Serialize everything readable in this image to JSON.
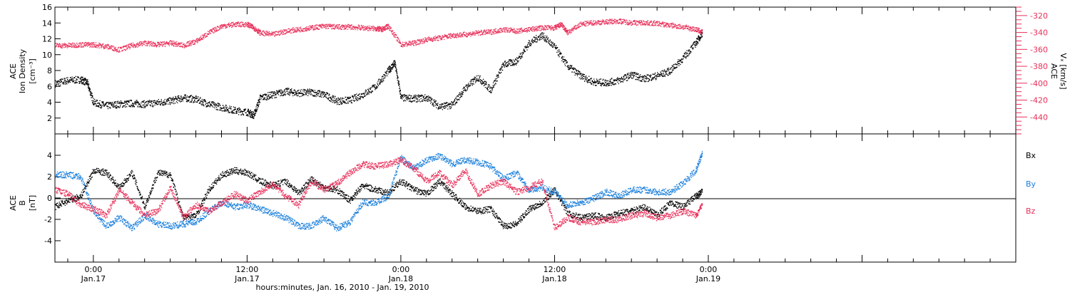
{
  "colors": {
    "black": "#000000",
    "red": "#e8305a",
    "blue": "#1a7fdc"
  },
  "chart_data": [
    {
      "type": "scatter",
      "title": "",
      "xlabel": "hours:minutes, Jan. 16, 2010 - Jan. 19, 2010",
      "x_range_hours": [
        -3,
        72
      ],
      "x_ticks": [
        {
          "hour": 0,
          "label": "0:00",
          "sublabel": "Jan.17"
        },
        {
          "hour": 12,
          "label": "12:00",
          "sublabel": "Jan.17"
        },
        {
          "hour": 24,
          "label": "0:00",
          "sublabel": "Jan.18"
        },
        {
          "hour": 36,
          "label": "12:00",
          "sublabel": "Jan.18"
        },
        {
          "hour": 48,
          "label": "0:00",
          "sublabel": "Jan.19"
        }
      ],
      "left_axis": {
        "label_line1": "ACE",
        "label_line2": "Ion Density",
        "label_line3": "[cm⁻³]",
        "ylim": [
          0,
          16
        ],
        "ticks": [
          2,
          4,
          6,
          8,
          10,
          12,
          14,
          16
        ]
      },
      "right_axis": {
        "label_line1": "ACE",
        "label_line2": "Vₓ [km/s]",
        "ylim": [
          -460,
          -310
        ],
        "ticks": [
          -440,
          -420,
          -400,
          -380,
          -360,
          -340,
          -320
        ]
      },
      "series": [
        {
          "name": "Ion Density",
          "axis": "left",
          "color": "#000000",
          "points": [
            [
              -3,
              6.4
            ],
            [
              -2,
              6.8
            ],
            [
              -1,
              6.9
            ],
            [
              -0.5,
              6.5
            ],
            [
              0,
              4.0
            ],
            [
              1,
              3.6
            ],
            [
              2,
              3.8
            ],
            [
              3,
              3.9
            ],
            [
              4,
              3.8
            ],
            [
              5,
              4.0
            ],
            [
              6,
              4.2
            ],
            [
              7,
              4.6
            ],
            [
              8,
              4.4
            ],
            [
              9,
              3.8
            ],
            [
              10,
              3.4
            ],
            [
              11,
              3.0
            ],
            [
              12,
              2.8
            ],
            [
              12.5,
              2.4
            ],
            [
              13,
              4.6
            ],
            [
              14,
              5.0
            ],
            [
              15,
              5.4
            ],
            [
              16,
              5.2
            ],
            [
              17,
              5.3
            ],
            [
              18,
              5.0
            ],
            [
              19,
              4.2
            ],
            [
              20,
              4.3
            ],
            [
              21,
              5.0
            ],
            [
              22,
              6.0
            ],
            [
              23,
              8.0
            ],
            [
              23.5,
              9.0
            ],
            [
              24,
              4.6
            ],
            [
              25,
              4.5
            ],
            [
              26,
              4.6
            ],
            [
              27,
              3.5
            ],
            [
              28,
              3.7
            ],
            [
              29,
              5.8
            ],
            [
              30,
              7.2
            ],
            [
              31,
              5.6
            ],
            [
              32,
              8.8
            ],
            [
              33,
              9.2
            ],
            [
              34,
              11.5
            ],
            [
              35,
              12.5
            ],
            [
              36,
              11.0
            ],
            [
              37,
              8.6
            ],
            [
              38,
              7.4
            ],
            [
              39,
              6.6
            ],
            [
              40,
              6.5
            ],
            [
              41,
              6.8
            ],
            [
              42,
              7.5
            ],
            [
              43,
              7.0
            ],
            [
              44,
              7.4
            ],
            [
              45,
              8.0
            ],
            [
              46,
              9.6
            ],
            [
              47,
              11.5
            ],
            [
              47.5,
              12.8
            ]
          ]
        },
        {
          "name": "Vx",
          "axis": "right",
          "color": "#e8305a",
          "points": [
            [
              -3,
              -355
            ],
            [
              -2,
              -355
            ],
            [
              -1,
              -354
            ],
            [
              0,
              -354
            ],
            [
              1,
              -356
            ],
            [
              2,
              -360
            ],
            [
              3,
              -355
            ],
            [
              4,
              -352
            ],
            [
              5,
              -354
            ],
            [
              6,
              -352
            ],
            [
              7,
              -355
            ],
            [
              8,
              -350
            ],
            [
              9,
              -340
            ],
            [
              10,
              -332
            ],
            [
              11,
              -330
            ],
            [
              12,
              -330
            ],
            [
              12.5,
              -334
            ],
            [
              13,
              -340
            ],
            [
              14,
              -342
            ],
            [
              15,
              -338
            ],
            [
              16,
              -336
            ],
            [
              17,
              -334
            ],
            [
              18,
              -332
            ],
            [
              19,
              -333
            ],
            [
              20,
              -333
            ],
            [
              21,
              -334
            ],
            [
              22,
              -335
            ],
            [
              22.5,
              -336
            ],
            [
              23,
              -332
            ],
            [
              24,
              -354
            ],
            [
              25,
              -352
            ],
            [
              26,
              -348
            ],
            [
              27,
              -346
            ],
            [
              28,
              -343
            ],
            [
              29,
              -342
            ],
            [
              30,
              -340
            ],
            [
              31,
              -339
            ],
            [
              32,
              -336
            ],
            [
              33,
              -338
            ],
            [
              34,
              -336
            ],
            [
              35,
              -334
            ],
            [
              36,
              -334
            ],
            [
              36.5,
              -330
            ],
            [
              37,
              -340
            ],
            [
              38,
              -330
            ],
            [
              39,
              -328
            ],
            [
              40,
              -327
            ],
            [
              41,
              -326
            ],
            [
              42,
              -328
            ],
            [
              43,
              -328
            ],
            [
              44,
              -329
            ],
            [
              45,
              -331
            ],
            [
              46,
              -333
            ],
            [
              47,
              -336
            ],
            [
              47.5,
              -339
            ]
          ]
        }
      ]
    },
    {
      "type": "scatter",
      "title": "",
      "left_axis": {
        "label_line1": "ACE",
        "label_line2": "B",
        "label_line3": "[nT]",
        "ylim": [
          -6,
          6
        ],
        "ticks": [
          -4,
          -2,
          0,
          2,
          4
        ]
      },
      "legend": [
        "Bx",
        "By",
        "Bz"
      ],
      "legend_placement": "right",
      "series": [
        {
          "name": "Bx",
          "color": "#000000",
          "points": [
            [
              -3,
              -0.8
            ],
            [
              -2,
              -0.2
            ],
            [
              -1,
              0.2
            ],
            [
              0,
              2.6
            ],
            [
              1,
              2.4
            ],
            [
              2,
              1.0
            ],
            [
              3,
              2.4
            ],
            [
              4,
              -0.8
            ],
            [
              5,
              2.4
            ],
            [
              6,
              2.2
            ],
            [
              7,
              -1.8
            ],
            [
              8,
              -1.6
            ],
            [
              9,
              0.8
            ],
            [
              10,
              2.2
            ],
            [
              11,
              2.6
            ],
            [
              12,
              2.4
            ],
            [
              13,
              1.6
            ],
            [
              14,
              1.2
            ],
            [
              15,
              1.6
            ],
            [
              16,
              0.5
            ],
            [
              17,
              1.8
            ],
            [
              18,
              1.0
            ],
            [
              19,
              0.8
            ],
            [
              20,
              -0.2
            ],
            [
              21,
              1.2
            ],
            [
              22,
              0.8
            ],
            [
              23,
              0.5
            ],
            [
              24,
              1.6
            ],
            [
              25,
              0.8
            ],
            [
              26,
              0.4
            ],
            [
              27,
              1.6
            ],
            [
              28,
              0.4
            ],
            [
              29,
              -0.8
            ],
            [
              30,
              -1.2
            ],
            [
              31,
              -1.0
            ],
            [
              32,
              -2.6
            ],
            [
              33,
              -2.4
            ],
            [
              34,
              -1.0
            ],
            [
              35,
              -0.4
            ],
            [
              36,
              0.8
            ],
            [
              37,
              -1.4
            ],
            [
              38,
              -1.8
            ],
            [
              39,
              -1.6
            ],
            [
              40,
              -1.8
            ],
            [
              41,
              -1.4
            ],
            [
              42,
              -1.2
            ],
            [
              43,
              -0.8
            ],
            [
              44,
              -1.6
            ],
            [
              45,
              -0.4
            ],
            [
              46,
              -0.8
            ],
            [
              47,
              0.2
            ],
            [
              47.5,
              0.6
            ]
          ]
        },
        {
          "name": "By",
          "color": "#1a7fdc",
          "points": [
            [
              -3,
              2.2
            ],
            [
              -2,
              2.2
            ],
            [
              -1,
              2.0
            ],
            [
              0,
              -1.2
            ],
            [
              1,
              -2.6
            ],
            [
              2,
              -1.8
            ],
            [
              3,
              -2.8
            ],
            [
              4,
              -1.6
            ],
            [
              5,
              -2.4
            ],
            [
              6,
              -2.6
            ],
            [
              7,
              -2.4
            ],
            [
              8,
              -2.2
            ],
            [
              9,
              -1.2
            ],
            [
              10,
              -0.4
            ],
            [
              11,
              -0.8
            ],
            [
              12,
              -0.6
            ],
            [
              13,
              -1.0
            ],
            [
              14,
              -1.4
            ],
            [
              15,
              -1.8
            ],
            [
              16,
              -2.6
            ],
            [
              17,
              -2.6
            ],
            [
              18,
              -1.8
            ],
            [
              19,
              -2.8
            ],
            [
              20,
              -2.2
            ],
            [
              21,
              -0.4
            ],
            [
              22,
              -0.4
            ],
            [
              23,
              0.2
            ],
            [
              24,
              3.8
            ],
            [
              25,
              2.8
            ],
            [
              26,
              3.6
            ],
            [
              27,
              4.0
            ],
            [
              28,
              3.2
            ],
            [
              29,
              3.6
            ],
            [
              30,
              3.4
            ],
            [
              31,
              3.0
            ],
            [
              32,
              1.8
            ],
            [
              33,
              2.4
            ],
            [
              34,
              0.8
            ],
            [
              35,
              1.0
            ],
            [
              36,
              0.6
            ],
            [
              37,
              -0.6
            ],
            [
              38,
              -0.4
            ],
            [
              39,
              0.0
            ],
            [
              40,
              0.6
            ],
            [
              41,
              0.2
            ],
            [
              42,
              0.8
            ],
            [
              43,
              0.8
            ],
            [
              44,
              0.6
            ],
            [
              45,
              0.6
            ],
            [
              46,
              1.4
            ],
            [
              47,
              2.6
            ],
            [
              47.5,
              4.2
            ]
          ]
        },
        {
          "name": "Bz",
          "color": "#e8305a",
          "points": [
            [
              -3,
              0.8
            ],
            [
              -2,
              0.4
            ],
            [
              -1,
              -0.6
            ],
            [
              0,
              -1.0
            ],
            [
              1,
              -1.6
            ],
            [
              2,
              0.8
            ],
            [
              3,
              -0.4
            ],
            [
              4,
              -1.6
            ],
            [
              5,
              -1.2
            ],
            [
              6,
              1.0
            ],
            [
              7,
              -1.8
            ],
            [
              8,
              -0.6
            ],
            [
              9,
              -1.2
            ],
            [
              10,
              -0.4
            ],
            [
              11,
              0.4
            ],
            [
              12,
              -0.2
            ],
            [
              13,
              0.6
            ],
            [
              14,
              1.4
            ],
            [
              15,
              0.2
            ],
            [
              16,
              -0.6
            ],
            [
              17,
              1.6
            ],
            [
              18,
              0.8
            ],
            [
              19,
              1.4
            ],
            [
              20,
              2.4
            ],
            [
              21,
              3.2
            ],
            [
              22,
              3.0
            ],
            [
              23,
              3.2
            ],
            [
              24,
              3.6
            ],
            [
              25,
              2.8
            ],
            [
              26,
              1.6
            ],
            [
              27,
              2.4
            ],
            [
              28,
              1.2
            ],
            [
              29,
              2.6
            ],
            [
              30,
              0.4
            ],
            [
              31,
              1.2
            ],
            [
              32,
              1.6
            ],
            [
              33,
              0.6
            ],
            [
              34,
              1.0
            ],
            [
              35,
              1.6
            ],
            [
              36,
              -2.8
            ],
            [
              37,
              -1.8
            ],
            [
              38,
              -2.2
            ],
            [
              39,
              -2.2
            ],
            [
              40,
              -2.0
            ],
            [
              41,
              -2.0
            ],
            [
              42,
              -1.6
            ],
            [
              43,
              -1.4
            ],
            [
              44,
              -1.8
            ],
            [
              45,
              -1.6
            ],
            [
              46,
              -1.2
            ],
            [
              47,
              -1.6
            ],
            [
              47.5,
              -0.6
            ]
          ]
        }
      ]
    }
  ]
}
